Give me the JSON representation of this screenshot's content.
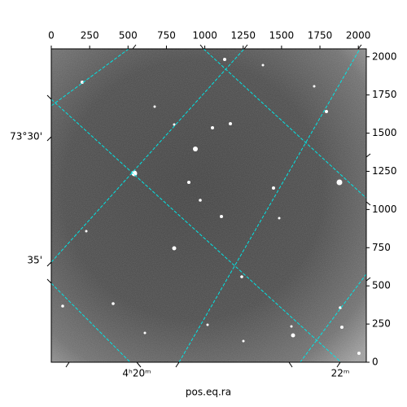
{
  "chart_data": {
    "type": "image",
    "x_label": "pos.eq.ra",
    "xlim": [
      0,
      2052
    ],
    "xticks": [
      0,
      250,
      500,
      750,
      1000,
      1250,
      1500,
      1750,
      2000
    ],
    "ylim": [
      0,
      2052
    ],
    "yticks": [
      0,
      250,
      500,
      750,
      1000,
      1250,
      1500,
      1750,
      2000
    ],
    "ra_tick_labels": [
      "4ʰ20ᵐ",
      "22ᵐ"
    ],
    "dec_tick_labels": [
      "73°30'",
      "35'"
    ],
    "grid_color": "#00e5e5"
  }
}
